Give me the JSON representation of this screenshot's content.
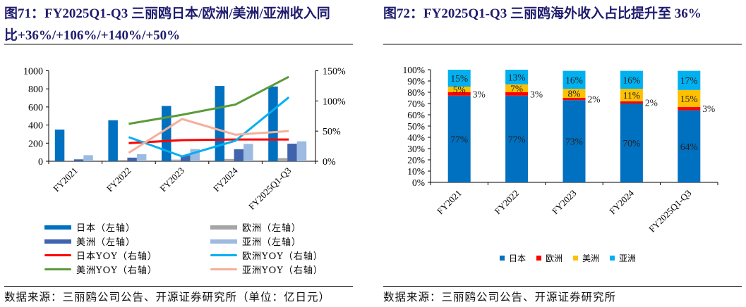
{
  "left": {
    "title_line1": "图71：FY2025Q1-Q3 三丽鸥日本/欧洲/美洲/亚洲收入同",
    "title_line2": "比+36%/+106%/+140%/+50%",
    "source": "数据来源：三丽鸥公司公告、开源证券研究所（单位：亿日元）"
  },
  "right": {
    "title": "图72：FY2025Q1-Q3 三丽鸥海外收入占比提升至 36%",
    "source": "数据来源：三丽鸥公司公告、开源证券研究所"
  },
  "chart_data": [
    {
      "type": "bar+line",
      "categories": [
        "FY2021",
        "FY2022",
        "FY2023",
        "FY2024",
        "FY2025Q1-Q3"
      ],
      "y_left": {
        "range": [
          0,
          1000
        ],
        "ticks": [
          "0",
          "200",
          "400",
          "600",
          "800",
          "1000"
        ]
      },
      "y_right": {
        "range": [
          0,
          150
        ],
        "ticks": [
          "0%",
          "50%",
          "100%",
          "150%"
        ]
      },
      "bars": [
        {
          "name": "日本（左轴）",
          "color": "#0070c0",
          "values": [
            350,
            453,
            611,
            832,
            826
          ]
        },
        {
          "name": "欧洲（左轴）",
          "color": "#a5a5a5",
          "values": [
            8,
            15,
            18,
            25,
            35
          ]
        },
        {
          "name": "美洲（左轴）",
          "color": "#3f64ad",
          "values": [
            21,
            40,
            65,
            132,
            194
          ]
        },
        {
          "name": "亚洲（左轴）",
          "color": "#9dbbe1",
          "values": [
            67,
            78,
            135,
            192,
            220
          ]
        }
      ],
      "lines": [
        {
          "name": "日本YOY（右轴）",
          "color": "#ff0000",
          "values": [
            null,
            30,
            35,
            36,
            36
          ]
        },
        {
          "name": "欧洲YOY（右轴）",
          "color": "#00b0f0",
          "values": [
            null,
            40,
            8,
            34,
            106
          ]
        },
        {
          "name": "美洲YOY（右轴）",
          "color": "#5b9b3a",
          "values": [
            null,
            62,
            77,
            94,
            140
          ]
        },
        {
          "name": "亚洲YOY（右轴）",
          "color": "#f4b09a",
          "values": [
            null,
            14,
            70,
            44,
            50
          ]
        }
      ],
      "legend": "bottom"
    },
    {
      "type": "stacked-bar",
      "categories": [
        "FY2021",
        "FY2022",
        "FY2023",
        "FY2024",
        "FY2025Q1-Q3"
      ],
      "y": {
        "range": [
          0,
          100
        ],
        "ticks": [
          "0%",
          "10%",
          "20%",
          "30%",
          "40%",
          "50%",
          "60%",
          "70%",
          "80%",
          "90%",
          "100%"
        ]
      },
      "series": [
        {
          "name": "日本",
          "color": "#0070c0",
          "values": [
            77,
            77,
            73,
            70,
            64
          ]
        },
        {
          "name": "欧洲",
          "color": "#ff0000",
          "values": [
            3,
            3,
            2,
            2,
            3
          ]
        },
        {
          "name": "美洲",
          "color": "#ffc000",
          "values": [
            5,
            7,
            8,
            11,
            15
          ]
        },
        {
          "name": "亚洲",
          "color": "#00b0f0",
          "values": [
            15,
            13,
            16,
            16,
            17
          ]
        }
      ],
      "legend": "bottom"
    }
  ]
}
